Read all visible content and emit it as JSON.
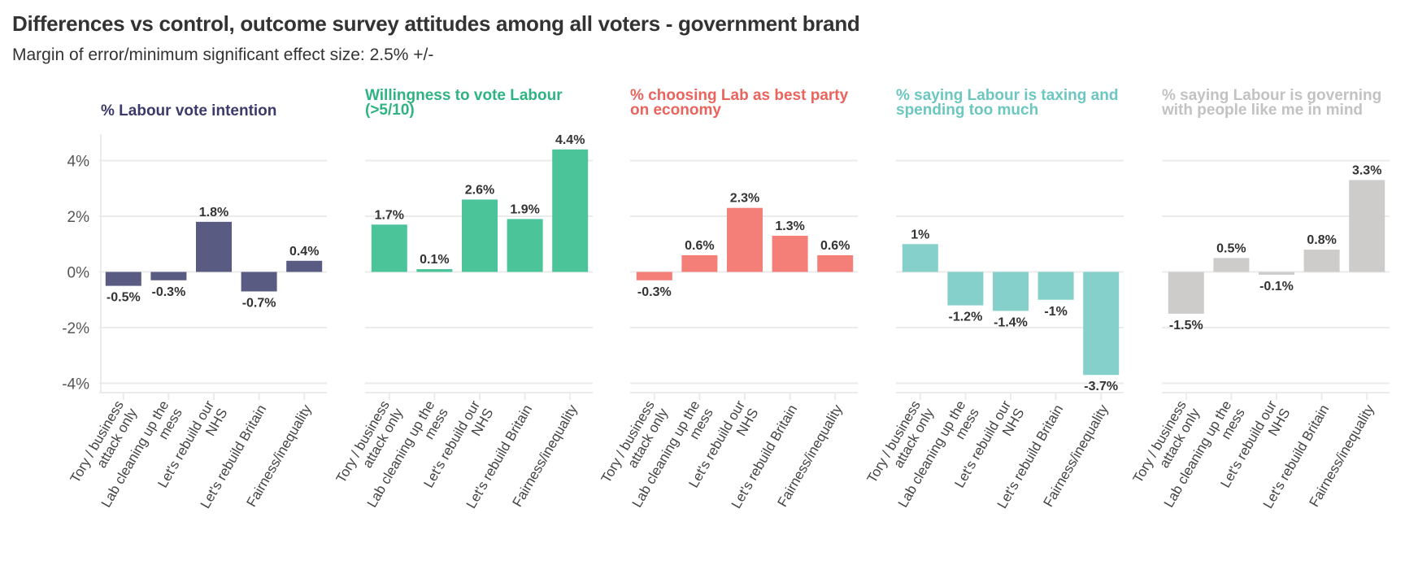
{
  "header": {
    "title": "Differences vs control, outcome survey attitudes among all voters - government brand",
    "subtitle": "Margin of error/minimum significant effect size: 2.5% +/-"
  },
  "chart_data": {
    "type": "bar",
    "title": "Differences vs control, outcome survey attitudes among all voters - government brand",
    "subtitle": "Margin of error/minimum significant effect size: 2.5% +/-",
    "ylim": [
      -4.4,
      5.0
    ],
    "yticks": [
      4,
      2,
      0,
      -2,
      -4
    ],
    "ytick_labels": [
      "4%",
      "2%",
      "0%",
      "-2%",
      "-4%"
    ],
    "grid": true,
    "categories": [
      [
        "Tory / business",
        "attack only"
      ],
      [
        "Lab cleaning up the",
        "mess"
      ],
      [
        "Let's rebuild our",
        "NHS"
      ],
      [
        "Let's rebuild Britain"
      ],
      [
        "Fairness/inequality"
      ]
    ],
    "panels": [
      {
        "title": [
          "% Labour vote intention"
        ],
        "color": "#595b82",
        "title_color": "#3b3a6b",
        "values": [
          -0.5,
          -0.3,
          1.8,
          -0.7,
          0.4
        ],
        "labels": [
          "-0.5%",
          "-0.3%",
          "1.8%",
          "-0.7%",
          "0.4%"
        ]
      },
      {
        "title": [
          "Willingness to vote Labour",
          "(>5/10)"
        ],
        "color": "#4cc49a",
        "title_color": "#2fb383",
        "values": [
          1.7,
          0.1,
          2.6,
          1.9,
          4.4
        ],
        "labels": [
          "1.7%",
          "0.1%",
          "2.6%",
          "1.9%",
          "4.4%"
        ]
      },
      {
        "title": [
          "% choosing Lab as best party",
          "on economy"
        ],
        "color": "#f47f78",
        "title_color": "#e9645d",
        "values": [
          -0.3,
          0.6,
          2.3,
          1.3,
          0.6
        ],
        "labels": [
          "-0.3%",
          "0.6%",
          "2.3%",
          "1.3%",
          "0.6%"
        ]
      },
      {
        "title": [
          "% saying Labour is taxing and",
          "spending too much"
        ],
        "color": "#86d0cc",
        "title_color": "#6cc7c1",
        "values": [
          1.0,
          -1.2,
          -1.4,
          -1.0,
          -3.7
        ],
        "labels": [
          "1%",
          "-1.2%",
          "-1.4%",
          "-1%",
          "-3.7%"
        ]
      },
      {
        "title": [
          "% saying Labour is governing",
          "with people like me in mind"
        ],
        "color": "#cdcccb",
        "title_color": "#c3c2c2",
        "values": [
          -1.5,
          0.5,
          -0.1,
          0.8,
          3.3
        ],
        "labels": [
          "-1.5%",
          "0.5%",
          "-0.1%",
          "0.8%",
          "3.3%"
        ]
      }
    ]
  }
}
